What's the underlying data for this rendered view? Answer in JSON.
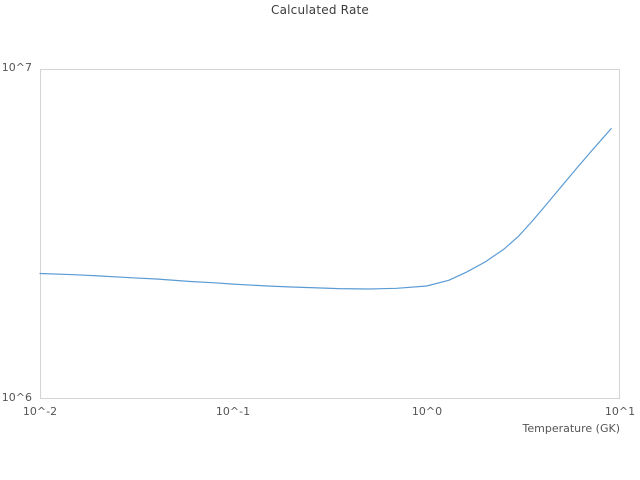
{
  "chart_data": {
    "type": "line",
    "title": "Calculated Rate",
    "xlabel": "Temperature (GK)",
    "ylabel": "",
    "x_scale": "log",
    "y_scale": "log",
    "xlim": [
      0.01,
      10
    ],
    "ylim": [
      1000000,
      10000000
    ],
    "x_tick_labels": [
      "10^-2",
      "10^-1",
      "10^0",
      "10^1"
    ],
    "y_tick_labels": [
      "10^6",
      "10^7"
    ],
    "grid": false,
    "legend_position": "none",
    "line_color": "#5b9bd5",
    "frame_color": "#d4d4d4",
    "series": [
      {
        "name": "Calculated Rate",
        "x": [
          0.01,
          0.015,
          0.02,
          0.03,
          0.04,
          0.06,
          0.08,
          0.1,
          0.15,
          0.2,
          0.25,
          0.35,
          0.5,
          0.7,
          1.0,
          1.3,
          1.6,
          2.0,
          2.5,
          3.0,
          3.5,
          4.0,
          5.0,
          6.0,
          7.0,
          8.0,
          9.0
        ],
        "y": [
          2400000,
          2380000,
          2360000,
          2330000,
          2310000,
          2270000,
          2250000,
          2230000,
          2200000,
          2185000,
          2175000,
          2160000,
          2155000,
          2165000,
          2200000,
          2290000,
          2420000,
          2600000,
          2840000,
          3120000,
          3450000,
          3780000,
          4420000,
          5020000,
          5580000,
          6100000,
          6600000
        ]
      }
    ]
  }
}
